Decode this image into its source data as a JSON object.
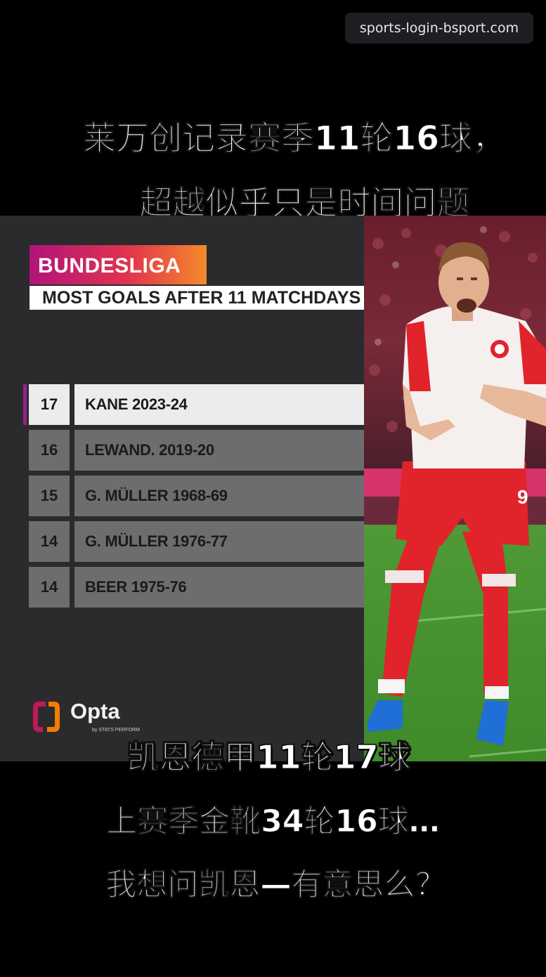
{
  "watermark": "sports-login-bsport.com",
  "captions": {
    "top_line1": "莱万创记录赛季11轮16球，",
    "top_line2": "超越似乎只是时间问题",
    "bottom_line1": "凯恩德甲11轮17球",
    "bottom_line2": "上赛季金靴34轮16球…",
    "bottom_line3": "我想问凯恩—有意思么？"
  },
  "graphic": {
    "league": "BUNDESLIGA",
    "subtitle": "MOST GOALS AFTER 11 MATCHDAYS",
    "rankings": [
      {
        "goals": "17",
        "player": "KANE 2023-24"
      },
      {
        "goals": "16",
        "player": "LEWAND. 2019-20"
      },
      {
        "goals": "15",
        "player": "G. MÜLLER 1968-69"
      },
      {
        "goals": "14",
        "player": "G. MÜLLER 1976-77"
      },
      {
        "goals": "14",
        "player": "BEER 1975-76"
      }
    ],
    "brand": "Opta",
    "brand_sub": "by STATS PERFORM"
  },
  "colors": {
    "background": "#000000",
    "panel": "#2b2b2d",
    "highlight_row": "#ececec",
    "row": "#6d6d70",
    "accent": "#9b1f8f",
    "badge_gradient_start": "#b0147a",
    "badge_gradient_end": "#f58a2a",
    "kit_red": "#e1232b"
  }
}
